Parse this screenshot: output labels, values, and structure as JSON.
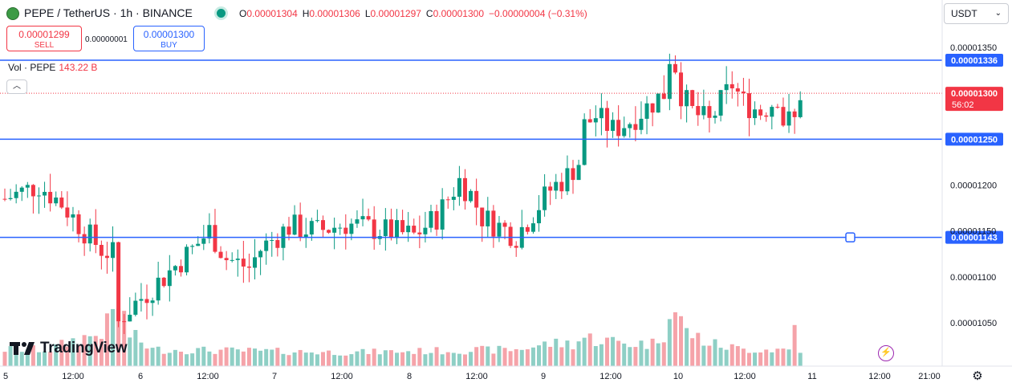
{
  "header": {
    "symbol_title": "PEPE / TetherUS · 1h · BINANCE",
    "symbol_icon": "pepe-logo-icon",
    "ohlc": {
      "o_label": "O",
      "o_value": "0.00001304",
      "h_label": "H",
      "h_value": "0.00001306",
      "l_label": "L",
      "l_value": "0.00001297",
      "c_label": "C",
      "c_value": "0.00001300",
      "change": "−0.00000004 (−0.31%)"
    }
  },
  "trade": {
    "sell_price": "0.00001299",
    "sell_label": "SELL",
    "spread": "0.00000001",
    "buy_price": "0.00001300",
    "buy_label": "BUY"
  },
  "volume_legend": {
    "label": "Vol · PEPE",
    "value": "143.22 B"
  },
  "currency_selector": {
    "value": "USDT"
  },
  "branding": {
    "logo_text": "TradingView"
  },
  "colors": {
    "up": "#089981",
    "down": "#f23645",
    "up_vol": "#8ecfc5",
    "down_vol": "#f5a3a9",
    "hline": "#2962ff"
  },
  "chart_data": {
    "type": "candlestick",
    "ylim": [
      1e-05,
      1.38e-05
    ],
    "y_ticks": [
      {
        "value": 1.35e-05,
        "label": "0.00001350"
      },
      {
        "value": 1.2e-05,
        "label": "0.00001200"
      },
      {
        "value": 1.15e-05,
        "label": "0.00001150"
      },
      {
        "value": 1.1e-05,
        "label": "0.00001100"
      },
      {
        "value": 1.05e-05,
        "label": "0.00001050"
      }
    ],
    "x_ticks": [
      "5",
      "12:00",
      "6",
      "12:00",
      "7",
      "12:00",
      "8",
      "12:00",
      "9",
      "12:00",
      "10",
      "12:00",
      "11",
      "12:00",
      "21:00"
    ],
    "horizontal_lines": [
      {
        "value": 1.336e-05,
        "label": "0.00001336"
      },
      {
        "value": 1.25e-05,
        "label": "0.00001250"
      },
      {
        "value": 1.143e-05,
        "label": "0.00001143"
      }
    ],
    "last_price": {
      "value": 1.3e-05,
      "label": "0.00001300",
      "countdown": "56:02"
    },
    "control_points": [
      [
        0,
        1.185e-05
      ],
      [
        6,
        1.2e-05
      ],
      [
        10,
        1.18e-05
      ],
      [
        14,
        1.15e-05
      ],
      [
        17,
        1.13e-05
      ],
      [
        19,
        1.125e-05
      ],
      [
        20,
        1.05e-05
      ],
      [
        21,
        1.06e-05
      ],
      [
        28,
        1.1e-05
      ],
      [
        33,
        1.13e-05
      ],
      [
        36,
        1.15e-05
      ],
      [
        39,
        1.12e-05
      ],
      [
        43,
        1.11e-05
      ],
      [
        45,
        1.13e-05
      ],
      [
        50,
        1.155e-05
      ],
      [
        55,
        1.15e-05
      ],
      [
        60,
        1.158e-05
      ],
      [
        67,
        1.15e-05
      ],
      [
        72,
        1.145e-05
      ],
      [
        76,
        1.165e-05
      ],
      [
        80,
        1.205e-05
      ],
      [
        82,
        1.19e-05
      ],
      [
        84,
        1.165e-05
      ],
      [
        90,
        1.145e-05
      ],
      [
        93,
        1.17e-05
      ],
      [
        96,
        1.195e-05
      ],
      [
        99,
        1.21e-05
      ],
      [
        101,
        1.225e-05
      ],
      [
        102,
        1.265e-05
      ],
      [
        104,
        1.275e-05
      ],
      [
        107,
        1.26e-05
      ],
      [
        110,
        1.27e-05
      ],
      [
        114,
        1.29e-05
      ],
      [
        116,
        1.3e-05
      ],
      [
        117,
        1.34e-05
      ],
      [
        118,
        1.33e-05
      ],
      [
        119,
        1.3e-05
      ],
      [
        121,
        1.28e-05
      ],
      [
        124,
        1.268e-05
      ],
      [
        126,
        1.29e-05
      ],
      [
        128,
        1.31e-05
      ],
      [
        130,
        1.29e-05
      ],
      [
        133,
        1.28e-05
      ],
      [
        135,
        1.29e-05
      ],
      [
        136,
        1.298e-05
      ],
      [
        137,
        1.27e-05
      ],
      [
        139,
        1.27e-05
      ],
      [
        140,
        1.3e-05
      ]
    ],
    "volume_profile": [
      [
        0,
        0.2
      ],
      [
        8,
        0.2
      ],
      [
        12,
        0.35
      ],
      [
        16,
        0.45
      ],
      [
        18,
        0.6
      ],
      [
        20,
        1.0
      ],
      [
        22,
        0.45
      ],
      [
        26,
        0.2
      ],
      [
        60,
        0.15
      ],
      [
        90,
        0.2
      ],
      [
        96,
        0.3
      ],
      [
        100,
        0.3
      ],
      [
        102,
        0.4
      ],
      [
        110,
        0.3
      ],
      [
        114,
        0.3
      ],
      [
        116,
        0.5
      ],
      [
        117,
        1.0
      ],
      [
        120,
        0.5
      ],
      [
        124,
        0.3
      ],
      [
        130,
        0.2
      ],
      [
        138,
        0.2
      ],
      [
        139,
        0.6
      ],
      [
        140,
        0.2
      ]
    ]
  }
}
